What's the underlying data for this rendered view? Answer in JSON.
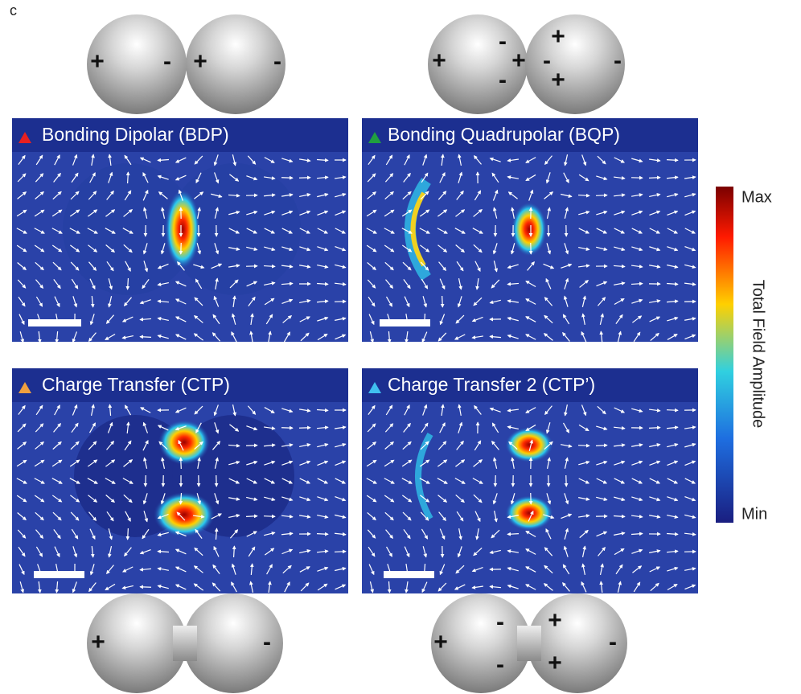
{
  "label": "c",
  "panels": [
    {
      "title": "Bonding Dipolar (BDP)"
    },
    {
      "title": "Bonding Quadrupolar (BQP)"
    },
    {
      "title": "Charge Transfer (CTP)"
    },
    {
      "title": "Charge Transfer 2 (CTP’)"
    }
  ],
  "colorbar": {
    "max": "Max",
    "min": "Min",
    "label": "Total Field Amplitude"
  },
  "charges": {
    "top_left": [
      "+",
      "-",
      "+",
      "-"
    ],
    "top_right": [
      "+",
      "-",
      "+",
      "-",
      "+",
      "-",
      "+",
      "-"
    ],
    "bottom_left": [
      "+",
      "-"
    ],
    "bottom_right": [
      "+",
      "-",
      "-",
      "+",
      "+",
      "-"
    ]
  }
}
